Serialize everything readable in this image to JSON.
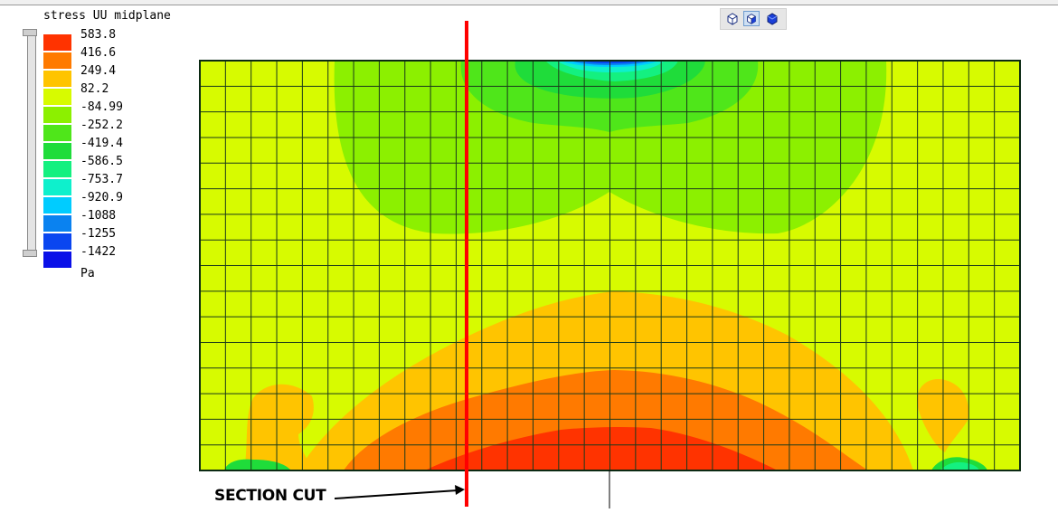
{
  "legend": {
    "title": "stress UU midplane",
    "unit": "Pa",
    "entries": [
      {
        "label": "583.8",
        "color": "#ff3300"
      },
      {
        "label": "416.6",
        "color": "#ff7a00"
      },
      {
        "label": "249.4",
        "color": "#ffc400"
      },
      {
        "label": "82.2",
        "color": "#d7fb00"
      },
      {
        "label": "-84.99",
        "color": "#8cf000"
      },
      {
        "label": "-252.2",
        "color": "#4fe61a"
      },
      {
        "label": "-419.4",
        "color": "#1fdc3a"
      },
      {
        "label": "-586.5",
        "color": "#14f080"
      },
      {
        "label": "-753.7",
        "color": "#0ef0cc"
      },
      {
        "label": "-920.9",
        "color": "#00ccff"
      },
      {
        "label": "-1088",
        "color": "#0a82f0"
      },
      {
        "label": "-1255",
        "color": "#0a46f0"
      },
      {
        "label": "-1422",
        "color": "#0a10e8"
      }
    ]
  },
  "toolbar": {
    "buttons": [
      {
        "icon": "wireframe-cube-icon",
        "active": false
      },
      {
        "icon": "shaded-cube-icon",
        "active": true
      },
      {
        "icon": "solid-cube-icon",
        "active": false
      }
    ]
  },
  "mesh": {
    "columns": 32,
    "rows": 16
  },
  "annotation": {
    "label": "SECTION CUT",
    "line_color": "#ff0000"
  }
}
